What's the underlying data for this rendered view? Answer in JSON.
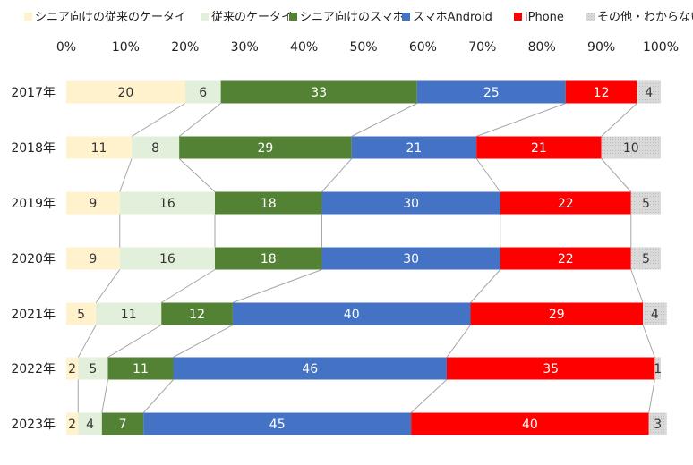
{
  "chart_data": {
    "type": "bar",
    "orientation": "horizontal",
    "stacked": "percent",
    "title": "",
    "xlabel": "",
    "ylabel": "",
    "xlim": [
      0,
      100
    ],
    "x_ticks": [
      "0%",
      "10%",
      "20%",
      "30%",
      "40%",
      "50%",
      "60%",
      "70%",
      "80%",
      "90%",
      "100%"
    ],
    "grid": false,
    "legend_position": "top",
    "series_lines": true,
    "categories": [
      "2017年",
      "2018年",
      "2019年",
      "2020年",
      "2021年",
      "2022年",
      "2023年"
    ],
    "series": [
      {
        "name": "シニア向けの従来のケータイ",
        "color": "#FFF2CC",
        "label_color": "#333333",
        "values": [
          20,
          11,
          9,
          9,
          5,
          2,
          2
        ]
      },
      {
        "name": "従来のケータイ",
        "color": "#E2EFDA",
        "label_color": "#333333",
        "values": [
          6,
          8,
          16,
          16,
          11,
          5,
          4
        ]
      },
      {
        "name": "シニア向けのスマホ",
        "color": "#548235",
        "label_color": "#ffffff",
        "values": [
          33,
          29,
          18,
          18,
          12,
          11,
          7
        ]
      },
      {
        "name": "スマホAndroid",
        "color": "#4472C4",
        "label_color": "#ffffff",
        "values": [
          25,
          21,
          30,
          30,
          40,
          46,
          45
        ]
      },
      {
        "name": "iPhone",
        "color": "#FF0000",
        "label_color": "#ffffff",
        "values": [
          12,
          21,
          22,
          22,
          29,
          35,
          40
        ]
      },
      {
        "name": "その他・わからない",
        "color": "#D9D9D9",
        "label_color": "#333333",
        "values": [
          4,
          10,
          5,
          5,
          4,
          1,
          3
        ]
      }
    ]
  }
}
